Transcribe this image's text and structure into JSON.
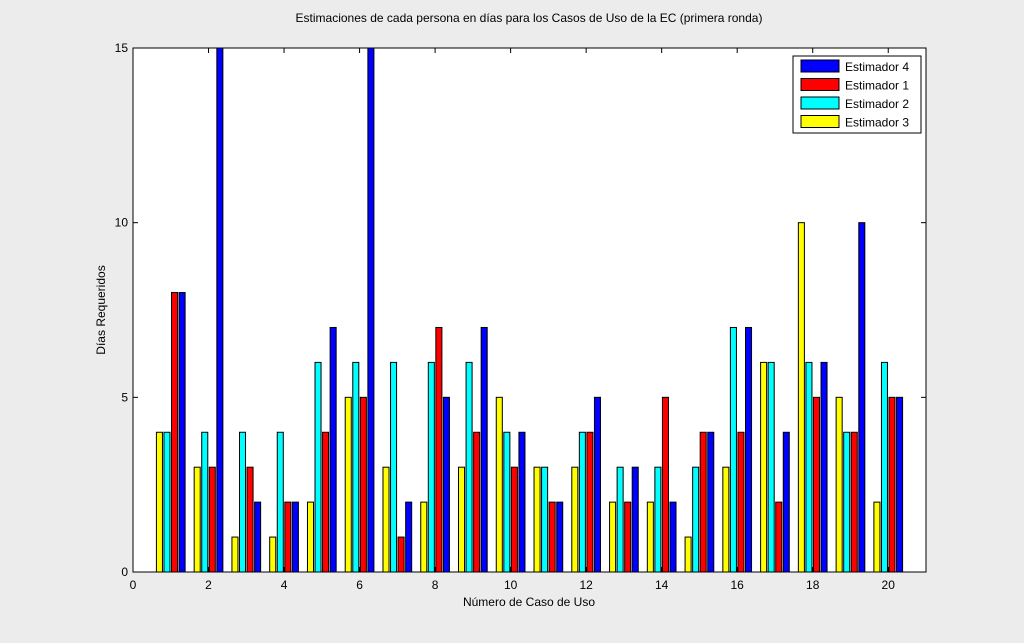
{
  "chart_data": {
    "type": "bar",
    "title": "Estimaciones de cada persona en días para los Casos de Uso de la EC (primera ronda)",
    "xlabel": "Número de Caso de Uso",
    "ylabel": "Días Requeridos",
    "xlim": [
      0,
      21
    ],
    "ylim": [
      0,
      15
    ],
    "x": [
      1,
      2,
      3,
      4,
      5,
      6,
      7,
      8,
      9,
      10,
      11,
      12,
      13,
      14,
      15,
      16,
      17,
      18,
      19,
      20
    ],
    "xticks": [
      0,
      2,
      4,
      6,
      8,
      10,
      12,
      14,
      16,
      18,
      20
    ],
    "yticks": [
      0,
      5,
      10,
      15
    ],
    "grid": false,
    "legend_position": "top-right",
    "legend_order": [
      "Estimador 4",
      "Estimador 1",
      "Estimador 2",
      "Estimador 3"
    ],
    "series": [
      {
        "name": "Estimador 3",
        "color": "#ffff00",
        "values": [
          4,
          3,
          1,
          1,
          2,
          5,
          3,
          2,
          3,
          5,
          3,
          3,
          2,
          2,
          1,
          3,
          6,
          10,
          5,
          2
        ]
      },
      {
        "name": "Estimador 2",
        "color": "#00ffff",
        "values": [
          4,
          4,
          4,
          4,
          6,
          6,
          6,
          6,
          6,
          4,
          3,
          4,
          3,
          3,
          3,
          7,
          6,
          6,
          4,
          6
        ]
      },
      {
        "name": "Estimador 1",
        "color": "#ff0000",
        "values": [
          8,
          3,
          3,
          2,
          4,
          5,
          1,
          7,
          4,
          3,
          2,
          4,
          2,
          5,
          4,
          4,
          2,
          5,
          4,
          5
        ]
      },
      {
        "name": "Estimador 4",
        "color": "#0000ff",
        "values": [
          8,
          15,
          2,
          2,
          7,
          15,
          2,
          5,
          7,
          4,
          2,
          5,
          3,
          2,
          4,
          7,
          4,
          6,
          10,
          5
        ]
      }
    ]
  }
}
